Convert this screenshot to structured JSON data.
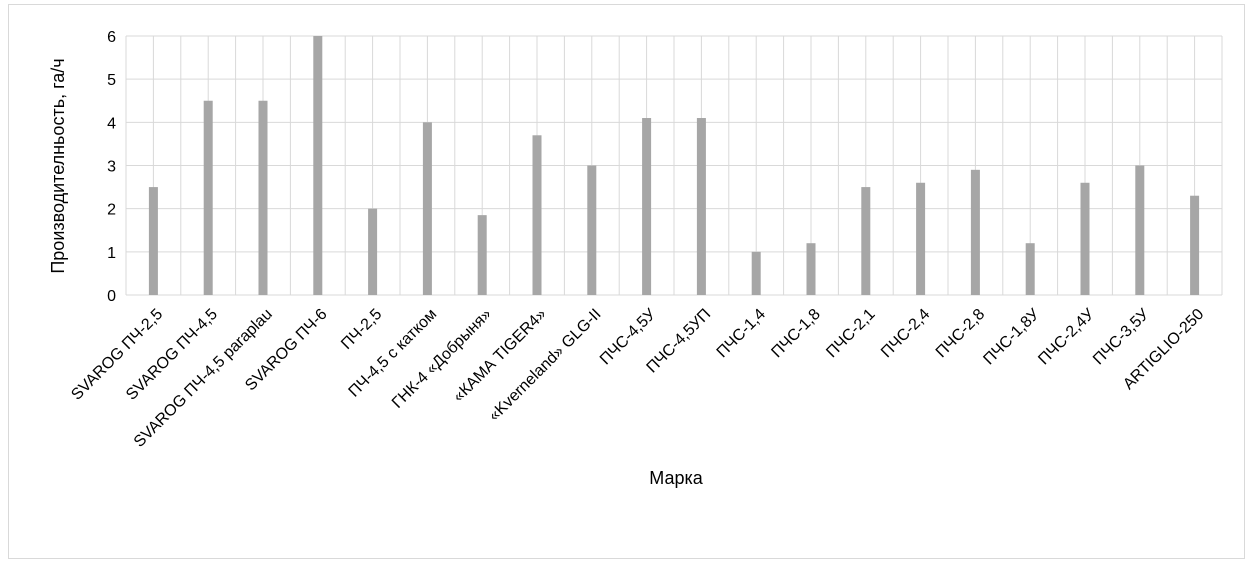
{
  "chart_data": {
    "type": "bar",
    "title": "",
    "xlabel": "Марка",
    "ylabel": "Производителньость, га/ч",
    "ylim": [
      0,
      6
    ],
    "yticks": [
      0,
      1,
      2,
      3,
      4,
      5,
      6
    ],
    "grid": true,
    "legend": "none",
    "bar_color": "#a6a6a6",
    "categories": [
      "SVAROG ПЧ-2,5",
      "SVAROG ПЧ-4,5",
      "SVAROG ПЧ-4,5 paraplau",
      "SVAROG ПЧ-6",
      "ПЧ-2,5",
      "ПЧ-4,5 с катком",
      "ГНК-4 «Добрыня»",
      "«КАМА TIGER4»",
      "«Kverneland» GLG-II",
      "ПЧС-4,5У",
      "ПЧС-4,5УП",
      "ПЧС-1,4",
      "ПЧС-1,8",
      "ПЧС-2,1",
      "ПЧС-2,4",
      "ПЧС-2,8",
      "ПЧС-1,8У",
      "ПЧС-2,4У",
      "ПЧС-3,5У",
      "ARTIGLIO-250"
    ],
    "values": [
      2.5,
      4.5,
      4.5,
      6.0,
      2.0,
      4.0,
      1.85,
      3.7,
      3.0,
      4.1,
      4.1,
      1.0,
      1.2,
      2.5,
      2.6,
      2.9,
      1.2,
      2.6,
      3.0,
      2.3
    ]
  }
}
